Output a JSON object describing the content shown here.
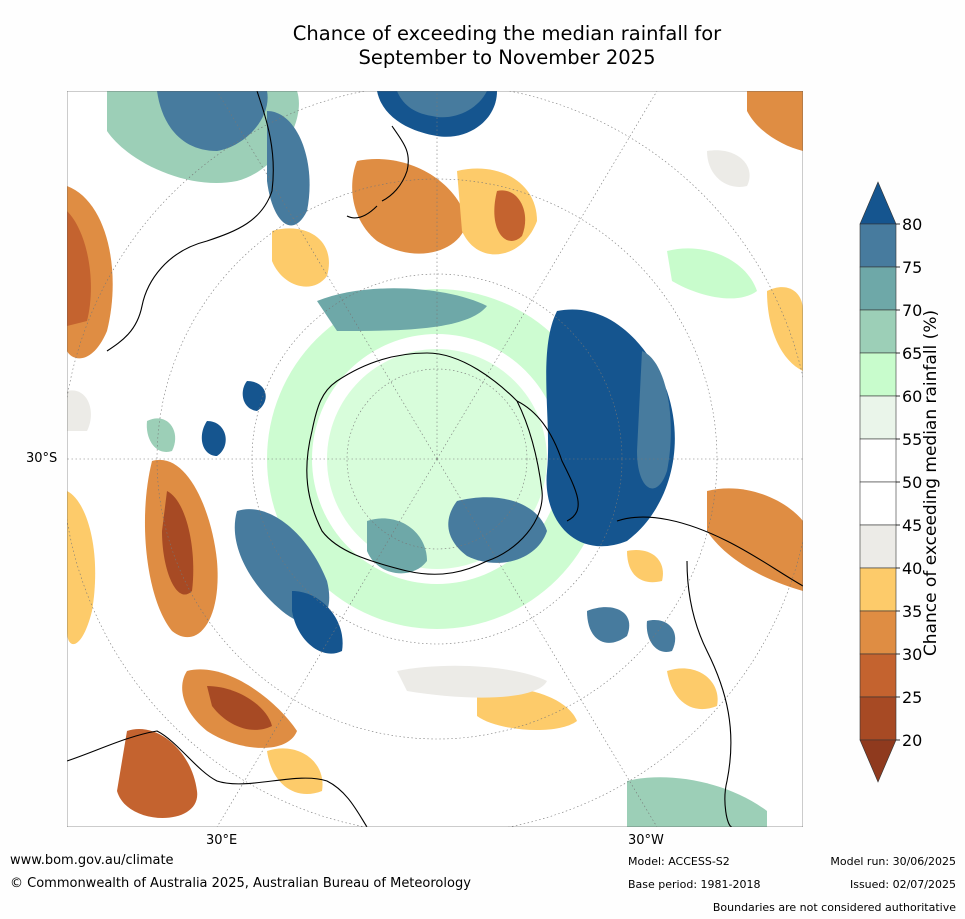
{
  "title": {
    "line1": "Chance of exceeding the median rainfall for",
    "line2": "September to November 2025"
  },
  "axis_labels": {
    "left_lat": "30°S",
    "bottom_left_lon": "30°E",
    "bottom_right_lon": "30°W"
  },
  "colorbar": {
    "label": "Chance of exceeding median rainfall (%)",
    "ticks": [
      "80",
      "75",
      "70",
      "65",
      "60",
      "55",
      "50",
      "45",
      "40",
      "35",
      "30",
      "25",
      "20"
    ],
    "colors": [
      "#15558f",
      "#477b9e",
      "#6ea8a8",
      "#9ccfb7",
      "#c8fccc",
      "#eaf5ea",
      "#ffffff",
      "#ffffff",
      "#ecebe7",
      "#fdcb6a",
      "#df8d43",
      "#c4632f",
      "#a74a24",
      "#8f3a1e"
    ]
  },
  "footer": {
    "website": "www.bom.gov.au/climate",
    "copyright": "© Commonwealth of Australia 2025, Australian Bureau of Meteorology",
    "model": "Model: ACCESS-S2",
    "base_period": "Base period: 1981-2018",
    "model_run": "Model run: 30/06/2025",
    "issued": "Issued: 02/07/2025",
    "disclaimer": "Boundaries are not considered authoritative"
  }
}
